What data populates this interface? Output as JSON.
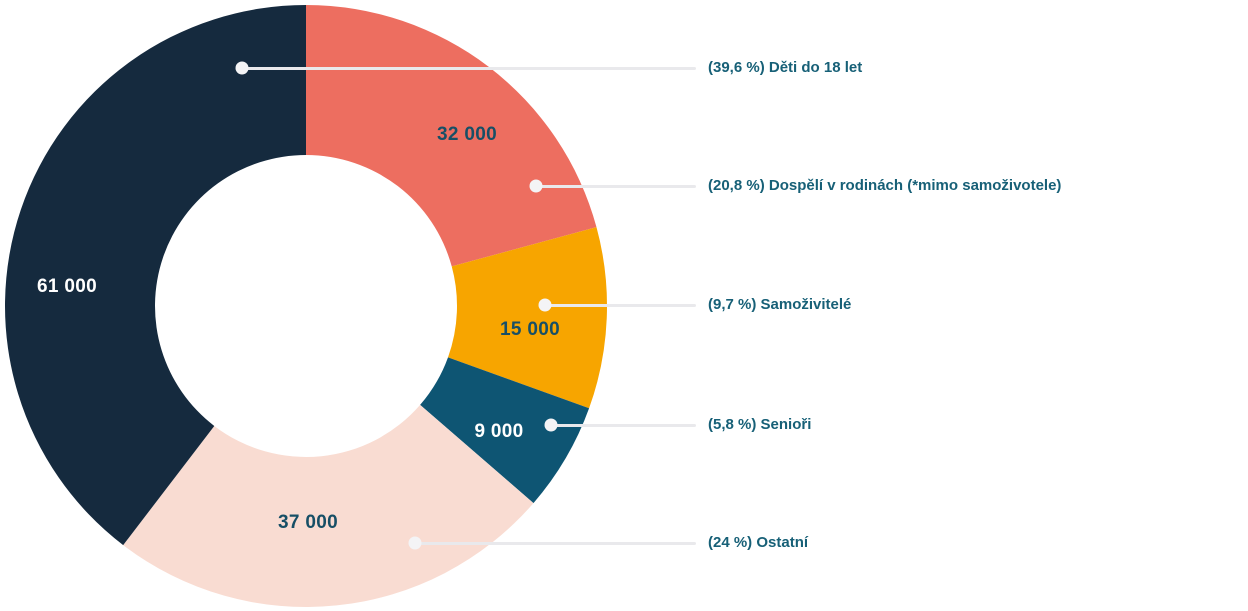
{
  "figure": {
    "background": "#FFFFFF",
    "leader_line_color": "#E9E9EC",
    "leader_dot_color": "#F4F4F6",
    "legend_text_color": "#176077"
  },
  "chart_data": {
    "type": "pie",
    "donut": true,
    "start_angle": "top",
    "direction": "clockwise",
    "legend_position": "right",
    "segments": [
      {
        "name": "Děti do 18 let",
        "legend_label": "(39,6 %) Děti do 18 let",
        "percent": 39.6,
        "value": 61000,
        "value_label": "61 000",
        "color": "#152A3E",
        "value_text_color": "#FFFFFF"
      },
      {
        "name": "Dospělí v rodinách (*mimo samoživotele)",
        "legend_label": "(20,8 %) Dospělí v rodinách (*mimo samoživotele)",
        "percent": 20.8,
        "value": 32000,
        "value_label": "32 000",
        "color": "#ED6E60",
        "value_text_color": "#174F66"
      },
      {
        "name": "Samoživitelé",
        "legend_label": "(9,7 %) Samoživitelé",
        "percent": 9.7,
        "value": 15000,
        "value_label": "15 000",
        "color": "#F7A500",
        "value_text_color": "#174F66"
      },
      {
        "name": "Senioři",
        "legend_label": "(5,8 %) Senioři",
        "percent": 5.8,
        "value": 9000,
        "value_label": "9 000",
        "color": "#0E5573",
        "value_text_color": "#FFFFFF"
      },
      {
        "name": "Ostatní",
        "legend_label": "(24 %) Ostatní",
        "percent": 24,
        "value": 37000,
        "value_label": "37 000",
        "color": "#F9DCD2",
        "value_text_color": "#174F66"
      }
    ],
    "clockwise_order_from_top": [
      "Dospělí v rodinách (*mimo samoživotele)",
      "Samoživitelé",
      "Senioři",
      "Ostatní",
      "Děti do 18 let"
    ]
  }
}
